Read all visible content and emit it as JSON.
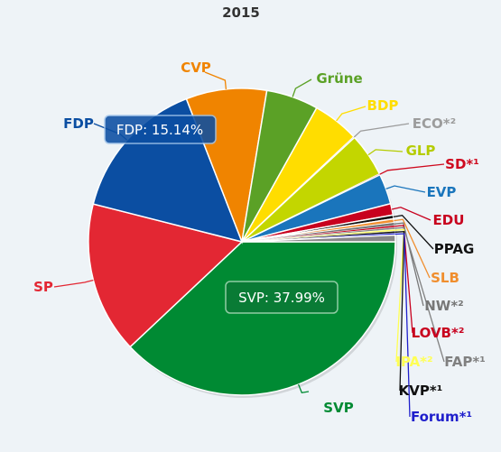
{
  "chart_data": {
    "type": "pie",
    "title": "2015",
    "slices": [
      {
        "name": "SVP",
        "value": 37.99,
        "color": "#008a33",
        "label_color": "#008a33"
      },
      {
        "name": "SP",
        "value": 15.98,
        "color": "#e32733",
        "label_color": "#e32733"
      },
      {
        "name": "FDP",
        "value": 15.14,
        "color": "#0b4ea2",
        "label_color": "#0b4ea2"
      },
      {
        "name": "CVP",
        "value": 8.5,
        "color": "#f08400",
        "label_color": "#f08400"
      },
      {
        "name": "Grüne",
        "value": 5.5,
        "color": "#5ba126",
        "label_color": "#5ba126"
      },
      {
        "name": "BDP",
        "value": 4.9,
        "color": "#ffdd00",
        "label_color": "#ffdd00"
      },
      {
        "name": "ECO*²",
        "value": 0.1,
        "color": "#a8a8a8",
        "label_color": "#9c9c9c"
      },
      {
        "name": "GLP",
        "value": 4.6,
        "color": "#c3d600",
        "label_color": "#b5cc00"
      },
      {
        "name": "SD*¹",
        "value": 0.1,
        "color": "#c8001e",
        "label_color": "#cf0a1f"
      },
      {
        "name": "EVP",
        "value": 3.2,
        "color": "#1a75bc",
        "label_color": "#1a75bc"
      },
      {
        "name": "EDU",
        "value": 1.2,
        "color": "#c8001e",
        "label_color": "#c8001e"
      },
      {
        "name": "PPAG",
        "value": 0.4,
        "color": "#111111",
        "label_color": "#111111"
      },
      {
        "name": "SLB",
        "value": 0.4,
        "color": "#f08e2e",
        "label_color": "#f08e2e"
      },
      {
        "name": "NW*²",
        "value": 0.3,
        "color": "#777777",
        "label_color": "#777777"
      },
      {
        "name": "LOVB*²",
        "value": 0.2,
        "color": "#c8001e",
        "label_color": "#c8001e"
      },
      {
        "name": "FAP*¹",
        "value": 0.2,
        "color": "#888888",
        "label_color": "#808080"
      },
      {
        "name": "IPA*²",
        "value": 0.2,
        "color": "#ffff66",
        "label_color": "#ffff55"
      },
      {
        "name": "KVP*¹",
        "value": 0.2,
        "color": "#111111",
        "label_color": "#111111"
      },
      {
        "name": "Forum*¹",
        "value": 0.2,
        "color": "#1f1fcc",
        "label_color": "#1f1fcc"
      },
      {
        "name": "",
        "value": 0.7,
        "color": "#888888",
        "label_color": "#888888"
      }
    ],
    "tooltips": [
      {
        "text": "FDP: 15.14%"
      },
      {
        "text": "SVP: 37.99%"
      }
    ]
  }
}
